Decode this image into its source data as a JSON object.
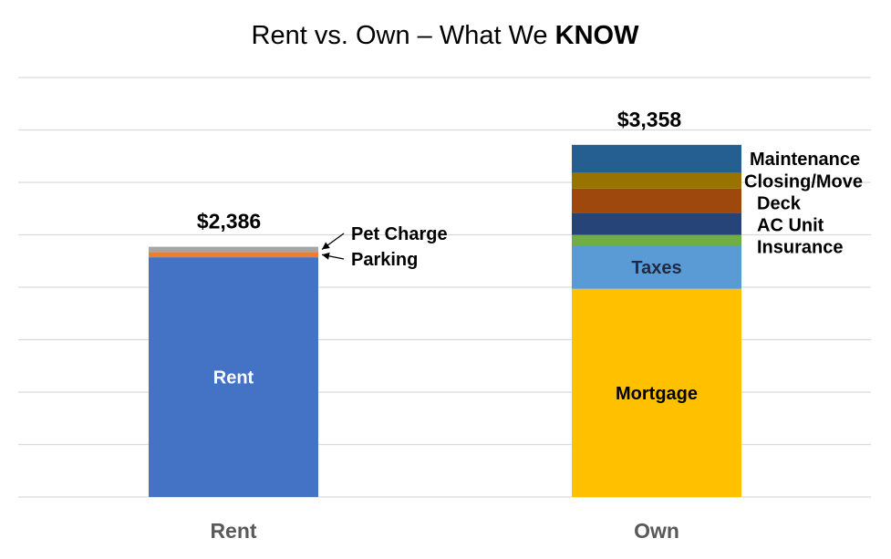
{
  "chart_data": {
    "type": "bar",
    "stacked": true,
    "title": "Rent vs. Own – What We ",
    "title_emphasis": "KNOW",
    "xlabel": "",
    "ylabel": "",
    "categories": [
      "Rent",
      "Own"
    ],
    "totals": [
      "$2,386",
      "$3,358"
    ],
    "ylim": [
      0,
      4000
    ],
    "grid": true,
    "stacks": [
      {
        "category": "Rent",
        "total": 2386,
        "segments": [
          {
            "name": "Rent",
            "value": 2286,
            "color": "#4472C4",
            "label_color": "#ffffff",
            "label_position": "inside",
            "label": "Rent"
          },
          {
            "name": "Parking",
            "value": 50,
            "color": "#ED7D31",
            "label_color": "#000000",
            "label_position": "callout",
            "label": "Parking"
          },
          {
            "name": "Pet Charge",
            "value": 50,
            "color": "#A5A5A5",
            "label_color": "#000000",
            "label_position": "callout",
            "label": "Pet Charge"
          }
        ]
      },
      {
        "category": "Own",
        "total": 3358,
        "segments": [
          {
            "name": "Mortgage",
            "value": 1985,
            "color": "#FFC000",
            "label_color": "#000000",
            "label_position": "inside",
            "label": "Mortgage"
          },
          {
            "name": "Taxes",
            "value": 415,
            "color": "#5B9BD5",
            "label_color": "#1f2a44",
            "label_position": "inside",
            "label": "Taxes"
          },
          {
            "name": "Insurance",
            "value": 100,
            "color": "#70AD47",
            "label_color": "#000000",
            "label_position": "right",
            "label": "Insurance"
          },
          {
            "name": "AC Unit",
            "value": 210,
            "color": "#264478",
            "label_color": "#000000",
            "label_position": "right",
            "label": "AC Unit"
          },
          {
            "name": "Deck",
            "value": 230,
            "color": "#9E480E",
            "label_color": "#000000",
            "label_position": "right",
            "label": "Deck"
          },
          {
            "name": "Closing/Move",
            "value": 150,
            "color": "#997300",
            "label_color": "#000000",
            "label_position": "right",
            "label": "Closing/Move"
          },
          {
            "name": "Maintenance",
            "value": 268,
            "color": "#255E91",
            "label_color": "#000000",
            "label_position": "right",
            "label": "Maintenance"
          }
        ]
      }
    ]
  }
}
